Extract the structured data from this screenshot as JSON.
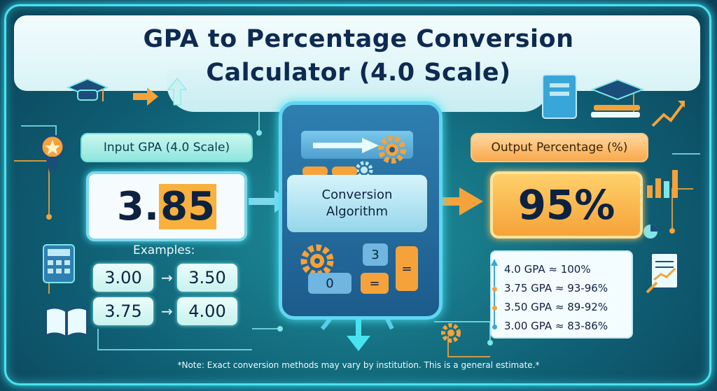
{
  "title": "GPA to Percentage Conversion Calculator (4.0 Scale)",
  "input": {
    "label": "Input GPA (4.0 Scale)",
    "value_part1": "3.",
    "value_highlight": "85"
  },
  "algorithm": {
    "line1": "Conversion",
    "line2": "Algorithm"
  },
  "calculator_keys": {
    "key3": "3",
    "key0": "0",
    "equals1": "=",
    "equals2": "="
  },
  "output": {
    "label": "Output Percentage (%)",
    "value": "95%"
  },
  "examples": {
    "title": "Examples:",
    "pairs": [
      {
        "from": "3.00",
        "to": "3.50"
      },
      {
        "from": "3.75",
        "to": "4.00"
      }
    ],
    "arrow": "→"
  },
  "conversions": [
    "4.0 GPA ≈ 100%",
    "3.75 GPA ≈ 93-96%",
    "3.50 GPA ≈ 89-92%",
    "3.00 GPA ≈ 83-86%"
  ],
  "note": "*Note: Exact conversion methods may vary by institution. This is a general estimate.*",
  "colors": {
    "accent_cyan": "#49e3f0",
    "accent_orange": "#f6a23a",
    "text_dark": "#0d2240"
  }
}
